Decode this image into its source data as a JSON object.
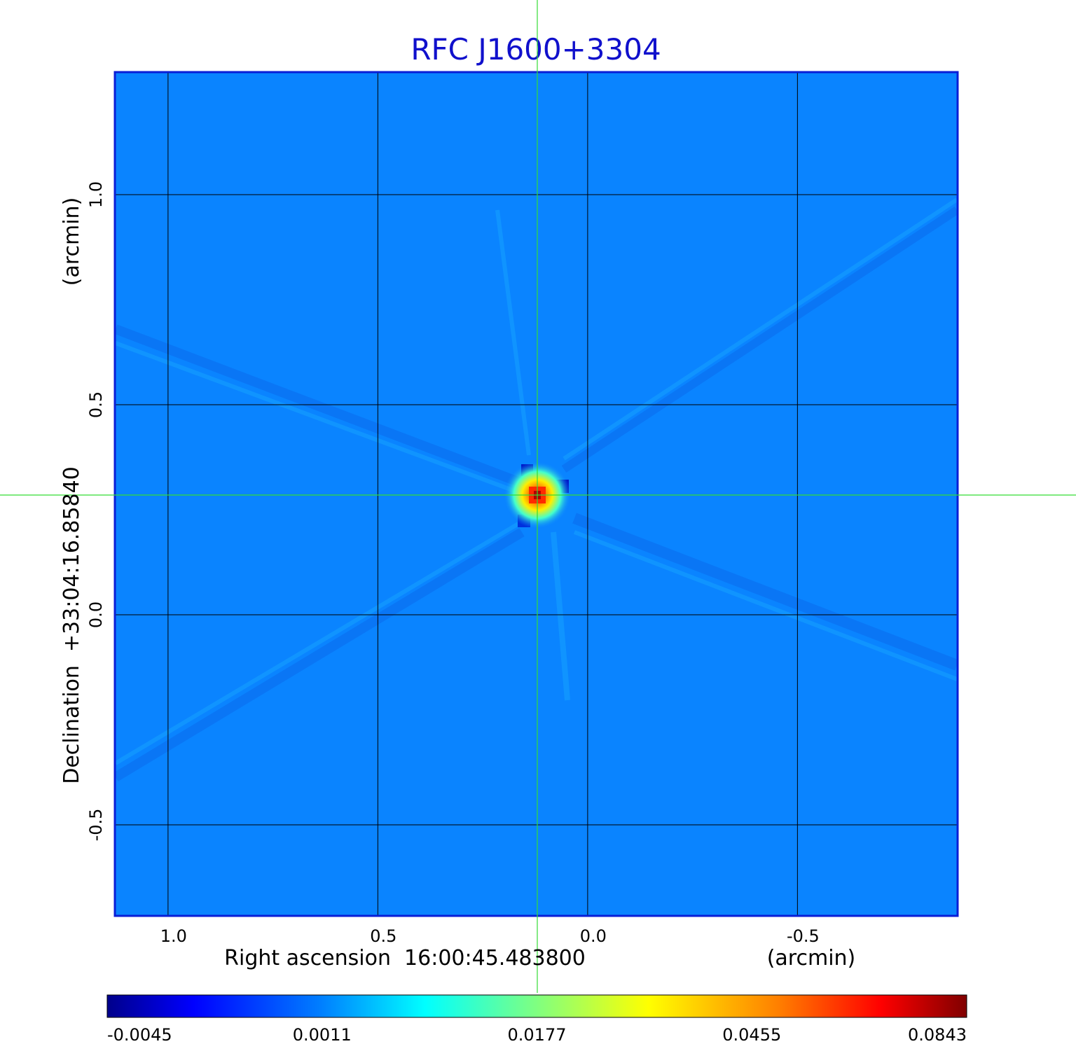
{
  "chart_data": {
    "type": "heatmap",
    "title": "RFC J1600+3304",
    "xlabel": "Right ascension  16:00:45.483800",
    "xunit": "(arcmin)",
    "ylabel": "Declination  +33:04:16.85840",
    "yunit": "(arcmin)",
    "x_ticks": [
      "1.0",
      "0.5",
      "0.0",
      "-0.5"
    ],
    "y_ticks": [
      "1.0",
      "0.5",
      "0.0",
      "-0.5"
    ],
    "x_tick_values": [
      1.0,
      0.5,
      0.0,
      -0.5
    ],
    "y_tick_values": [
      1.0,
      0.5,
      0.0,
      -0.5
    ],
    "xlim": [
      1.125,
      -0.88
    ],
    "ylim": [
      -0.715,
      1.29
    ],
    "grid": true,
    "crosshair": {
      "x": 0.12,
      "y": 0.285
    },
    "peak": {
      "x": 0.12,
      "y": 0.285,
      "value": 0.0843
    },
    "colorbar": {
      "min": -0.0045,
      "max": 0.0843,
      "labels": [
        "-0.0045",
        "0.0011",
        "0.0177",
        "0.0455",
        "0.0843"
      ]
    },
    "colors": {
      "title": "#1010cc",
      "frame": "#0a1ed6",
      "background_level": "#0a84ff",
      "grid": "#000000",
      "crosshair": "#33dd33"
    }
  }
}
